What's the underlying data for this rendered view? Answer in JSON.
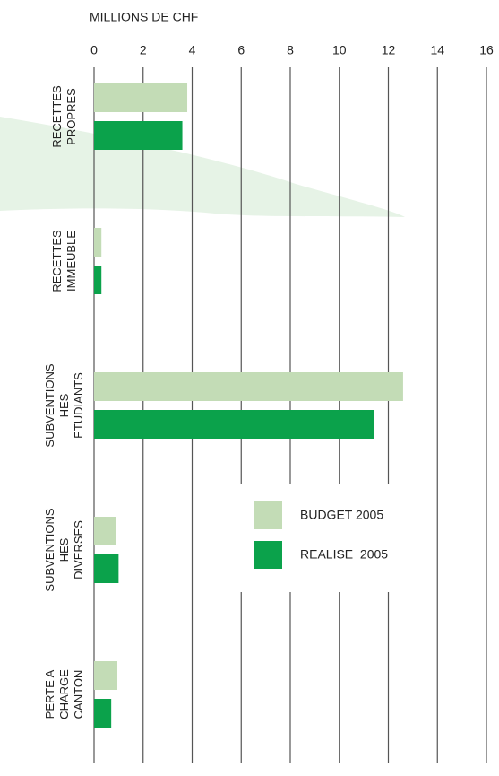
{
  "chart_data": {
    "type": "hbar",
    "x_label": "MILLIONS DE CHF",
    "categories": [
      "RECETTES PROPRES",
      "RECETTES IMMEUBLE",
      "SUBVENTIONS HES ETUDIANTS",
      "SUBVENTIONS HES DIVERSES",
      "PERTE A CHARGE CANTON"
    ],
    "series": [
      {
        "name": "BUDGET 2005",
        "color": "#c3dcb6",
        "values": [
          3.8,
          0.3,
          12.6,
          0.9,
          0.95
        ]
      },
      {
        "name": "REALISE  2005",
        "color": "#0ba24b",
        "values": [
          3.6,
          0.3,
          11.4,
          1.0,
          0.7
        ]
      }
    ],
    "xlim": [
      0,
      16
    ],
    "xticks": [
      0,
      2,
      4,
      6,
      8,
      10,
      12,
      14,
      16
    ],
    "grid": true
  }
}
